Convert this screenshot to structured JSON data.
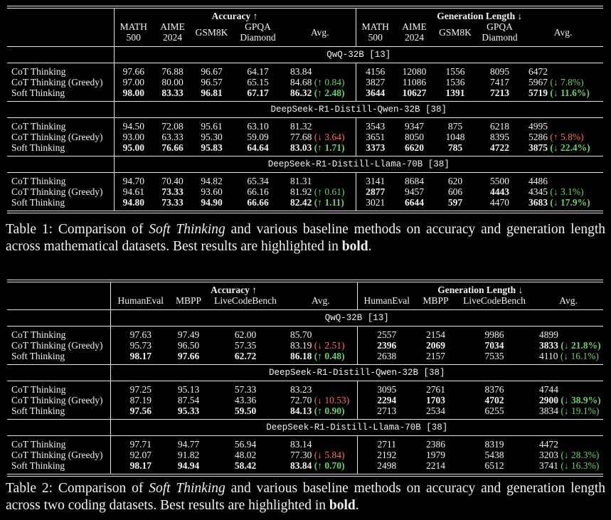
{
  "table_1": {
    "groups": [
      {
        "title": "Accuracy ↑",
        "columns": [
          [
            "MATH",
            "500"
          ],
          [
            "AIME",
            "2024"
          ],
          [
            "GSM8K"
          ],
          [
            "GPQA",
            "Diamond"
          ],
          [
            "Avg."
          ]
        ]
      },
      {
        "title": "Generation Length ↓",
        "columns": [
          [
            "MATH",
            "500"
          ],
          [
            "AIME",
            "2024"
          ],
          [
            "GSM8K"
          ],
          [
            "GPQA",
            "Diamond"
          ],
          [
            "Avg."
          ]
        ]
      }
    ],
    "sections": [
      {
        "model": "QwQ-32B [13]",
        "rows": [
          {
            "method": "CoT Thinking",
            "cells": [
              "97.66",
              "76.88",
              "96.67",
              "64.17",
              "83.84",
              "4156",
              "12080",
              "1556",
              "8095",
              "6472"
            ],
            "bold": []
          },
          {
            "method": "CoT Thinking (Greedy)",
            "cells": [
              "97.00",
              "80.00",
              "96.57",
              "65.15",
              "84.68",
              "3827",
              "11086",
              "1536",
              "7417",
              "5967"
            ],
            "bold": [],
            "acc_delta": {
              "text": "(↑ 0.84)",
              "color": "#6fcf6f"
            },
            "len_delta": {
              "text": "(↓ 7.8%)",
              "color": "#6fcf6f"
            }
          },
          {
            "method": "Soft Thinking",
            "cells": [
              "98.00",
              "83.33",
              "96.81",
              "67.17",
              "86.32",
              "3644",
              "10627",
              "1391",
              "7213",
              "5719"
            ],
            "bold": [
              0,
              1,
              2,
              3,
              4,
              5,
              6,
              7,
              8,
              9
            ],
            "acc_delta": {
              "text": "(↑ 2.48)",
              "color": "#6fcf6f"
            },
            "len_delta": {
              "text": "(↓ 11.6%)",
              "color": "#6fcf6f"
            }
          }
        ]
      },
      {
        "model": "DeepSeek-R1-Distill-Qwen-32B [38]",
        "rows": [
          {
            "method": "CoT Thinking",
            "cells": [
              "94.50",
              "72.08",
              "95.61",
              "63.10",
              "81.32",
              "3543",
              "9347",
              "875",
              "6218",
              "4995"
            ],
            "bold": []
          },
          {
            "method": "CoT Thinking (Greedy)",
            "cells": [
              "93.00",
              "63.33",
              "95.30",
              "59.09",
              "77.68",
              "3651",
              "8050",
              "1048",
              "8395",
              "5286"
            ],
            "bold": [],
            "acc_delta": {
              "text": "(↓ 3.64)",
              "color": "#ff6b6b"
            },
            "len_delta": {
              "text": "(↑ 5.8%)",
              "color": "#ff6b6b"
            }
          },
          {
            "method": "Soft Thinking",
            "cells": [
              "95.00",
              "76.66",
              "95.83",
              "64.64",
              "83.03",
              "3373",
              "6620",
              "785",
              "4722",
              "3875"
            ],
            "bold": [
              0,
              1,
              2,
              3,
              4,
              5,
              6,
              7,
              8,
              9
            ],
            "acc_delta": {
              "text": "(↑ 1.71)",
              "color": "#6fcf6f"
            },
            "len_delta": {
              "text": "(↓ 22.4%)",
              "color": "#6fcf6f"
            }
          }
        ]
      },
      {
        "model": "DeepSeek-R1-Distill-Llama-70B [38]",
        "rows": [
          {
            "method": "CoT Thinking",
            "cells": [
              "94.70",
              "70.40",
              "94.82",
              "65.34",
              "81.31",
              "3141",
              "8684",
              "620",
              "5500",
              "4486"
            ],
            "bold": []
          },
          {
            "method": "CoT Thinking (Greedy)",
            "cells": [
              "94.61",
              "73.33",
              "93.60",
              "66.16",
              "81.92",
              "2877",
              "9457",
              "606",
              "4443",
              "4345"
            ],
            "bold": [
              1,
              5,
              8
            ],
            "acc_delta": {
              "text": "(↑ 0.61)",
              "color": "#6fcf6f"
            },
            "len_delta": {
              "text": "(↓ 3.1%)",
              "color": "#6fcf6f"
            }
          },
          {
            "method": "Soft Thinking",
            "cells": [
              "94.80",
              "73.33",
              "94.90",
              "66.66",
              "82.42",
              "3021",
              "6644",
              "597",
              "4470",
              "3683"
            ],
            "bold": [
              0,
              1,
              2,
              3,
              4,
              6,
              7,
              9
            ],
            "acc_delta": {
              "text": "(↑ 1.11)",
              "color": "#6fcf6f"
            },
            "len_delta": {
              "text": "(↓ 17.9%)",
              "color": "#6fcf6f"
            }
          }
        ]
      }
    ],
    "caption": [
      {
        "text": "Table 1: Comparison of ",
        "style": "normal"
      },
      {
        "text": "Soft Thinking",
        "style": "italic"
      },
      {
        "text": " and various baseline methods on accuracy and generation length across mathematical datasets. Best results are highlighted in ",
        "style": "normal"
      },
      {
        "text": "bold",
        "style": "bold"
      },
      {
        "text": ".",
        "style": "normal"
      }
    ]
  },
  "table_2": {
    "groups": [
      {
        "title": "Accuracy ↑",
        "columns": [
          [
            "HumanEval"
          ],
          [
            "MBPP"
          ],
          [
            "LiveCodeBench"
          ],
          [
            "Avg."
          ]
        ]
      },
      {
        "title": "Generation Length ↓",
        "columns": [
          [
            "HumanEval"
          ],
          [
            "MBPP"
          ],
          [
            "LiveCodeBench"
          ],
          [
            "Avg."
          ]
        ]
      }
    ],
    "sections": [
      {
        "model": "QwQ-32B [13]",
        "rows": [
          {
            "method": "CoT Thinking",
            "cells": [
              "97.63",
              "97.49",
              "62.00",
              "85.70",
              "2557",
              "2154",
              "9986",
              "4899"
            ],
            "bold": []
          },
          {
            "method": "CoT Thinking (Greedy)",
            "cells": [
              "95.73",
              "96.50",
              "57.35",
              "83.19",
              "2396",
              "2069",
              "7034",
              "3833"
            ],
            "bold": [
              4,
              5,
              6,
              7
            ],
            "acc_delta": {
              "text": "(↓ 2.51)",
              "color": "#ff6b6b"
            },
            "len_delta": {
              "text": "(↓ 21.8%)",
              "color": "#6fcf6f"
            }
          },
          {
            "method": "Soft Thinking",
            "cells": [
              "98.17",
              "97.66",
              "62.72",
              "86.18",
              "2638",
              "2157",
              "7535",
              "4110"
            ],
            "bold": [
              0,
              1,
              2,
              3
            ],
            "acc_delta": {
              "text": "(↑ 0.48)",
              "color": "#6fcf6f"
            },
            "len_delta": {
              "text": "(↓ 16.1%)",
              "color": "#6fcf6f"
            }
          }
        ]
      },
      {
        "model": "DeepSeek-R1-Distill-Qwen-32B [38]",
        "rows": [
          {
            "method": "CoT Thinking",
            "cells": [
              "97.25",
              "95.13",
              "57.33",
              "83.23",
              "3095",
              "2761",
              "8376",
              "4744"
            ],
            "bold": []
          },
          {
            "method": "CoT Thinking (Greedy)",
            "cells": [
              "87.19",
              "87.54",
              "43.36",
              "72.70",
              "2294",
              "1703",
              "4702",
              "2900"
            ],
            "bold": [
              4,
              5,
              6,
              7
            ],
            "acc_delta": {
              "text": "(↓ 10.53)",
              "color": "#ff6b6b"
            },
            "len_delta": {
              "text": "(↓ 38.9%)",
              "color": "#6fcf6f"
            }
          },
          {
            "method": "Soft Thinking",
            "cells": [
              "97.56",
              "95.33",
              "59.50",
              "84.13",
              "2713",
              "2534",
              "6255",
              "3834"
            ],
            "bold": [
              0,
              1,
              2,
              3
            ],
            "acc_delta": {
              "text": "(↑ 0.90)",
              "color": "#6fcf6f"
            },
            "len_delta": {
              "text": "(↓ 19.1%)",
              "color": "#6fcf6f"
            }
          }
        ]
      },
      {
        "model": "DeepSeek-R1-Distill-Llama-70B [38]",
        "rows": [
          {
            "method": "CoT Thinking",
            "cells": [
              "97.71",
              "94.77",
              "56.94",
              "83.14",
              "2711",
              "2386",
              "8319",
              "4472"
            ],
            "bold": []
          },
          {
            "method": "CoT Thinking (Greedy)",
            "cells": [
              "92.07",
              "91.82",
              "48.02",
              "77.30",
              "2192",
              "1979",
              "5438",
              "3203"
            ],
            "bold": [],
            "acc_delta": {
              "text": "(↓ 5.84)",
              "color": "#ff6b6b"
            },
            "len_delta": {
              "text": "(↓ 28.3%)",
              "color": "#6fcf6f"
            }
          },
          {
            "method": "Soft Thinking",
            "cells": [
              "98.17",
              "94.94",
              "58.42",
              "83.84",
              "2498",
              "2214",
              "6512",
              "3741"
            ],
            "bold": [
              0,
              1,
              2,
              3
            ],
            "acc_delta": {
              "text": "(↑ 0.70)",
              "color": "#6fcf6f"
            },
            "len_delta": {
              "text": "(↓ 16.3%)",
              "color": "#6fcf6f"
            }
          }
        ]
      }
    ],
    "caption": [
      {
        "text": "Table 2: Comparison of ",
        "style": "normal"
      },
      {
        "text": "Soft Thinking",
        "style": "italic"
      },
      {
        "text": " and various baseline methods on accuracy and generation length across two coding datasets. Best results are highlighted in ",
        "style": "normal"
      },
      {
        "text": "bold",
        "style": "bold"
      },
      {
        "text": ".",
        "style": "normal"
      }
    ]
  }
}
